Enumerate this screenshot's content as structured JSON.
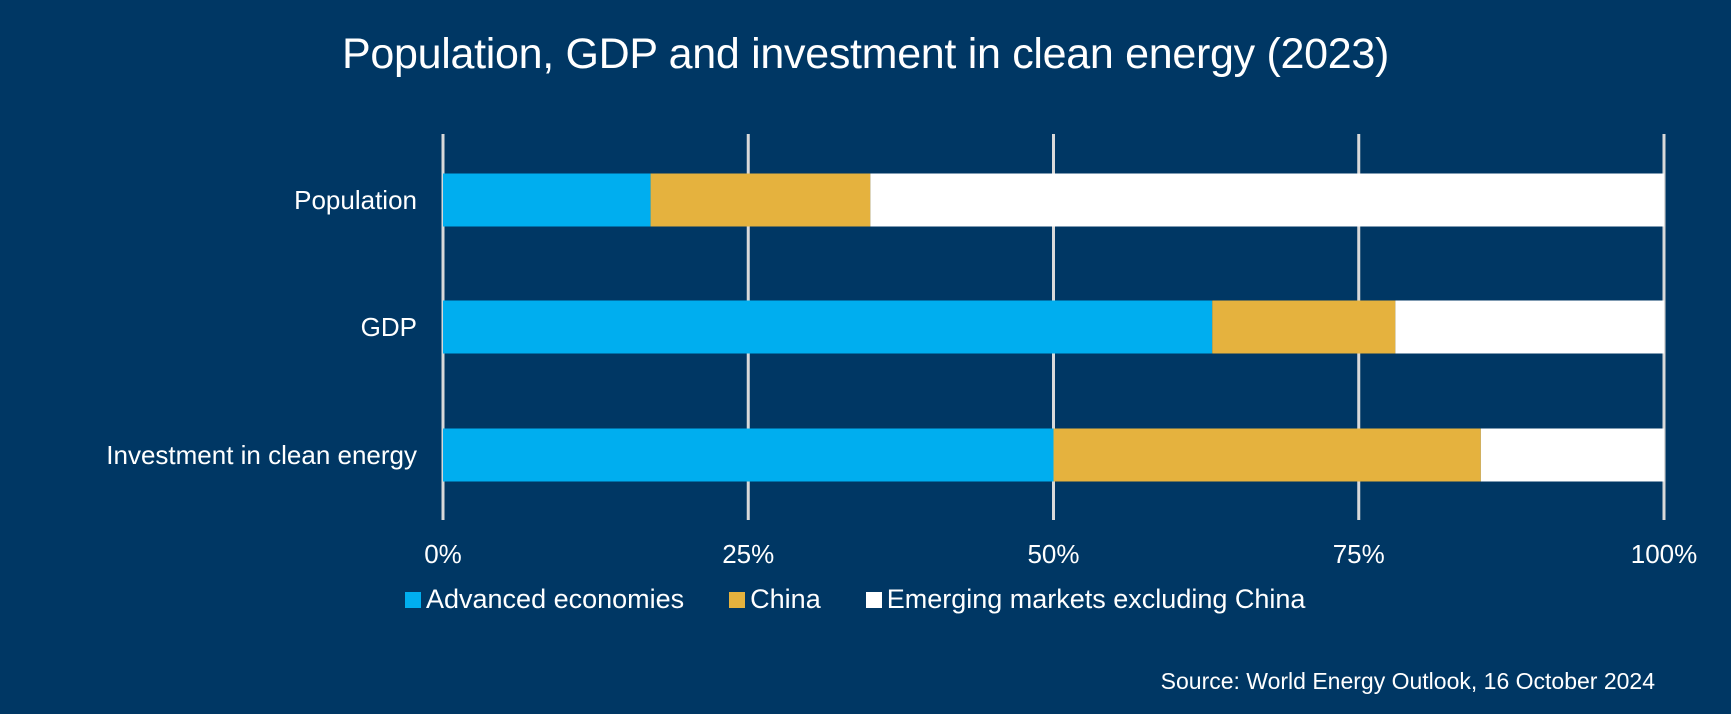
{
  "chart_data": {
    "type": "bar",
    "orientation": "horizontal",
    "stacked": "percent",
    "title": "Population, GDP and investment in clean energy (2023)",
    "categories": [
      "Population",
      "GDP",
      "Investment in clean energy"
    ],
    "series": [
      {
        "name": "Advanced economies",
        "color": "#00AEEF",
        "values": [
          17,
          63,
          50
        ]
      },
      {
        "name": "China",
        "color": "#E5B23E",
        "values": [
          18,
          15,
          35
        ]
      },
      {
        "name": "Emerging markets excluding China",
        "color": "#FFFFFF",
        "values": [
          65,
          22,
          15
        ]
      }
    ],
    "xlabel": "",
    "ylabel": "",
    "xlim": [
      0,
      100
    ],
    "x_ticks": [
      "0%",
      "25%",
      "50%",
      "75%",
      "100%"
    ],
    "grid": "vertical",
    "legend_position": "bottom",
    "source": "Source: World Energy Outlook, 16 October 2024"
  },
  "colors": {
    "background": "#003764",
    "gridline": "#D9D9D9",
    "text": "#FFFFFF"
  }
}
